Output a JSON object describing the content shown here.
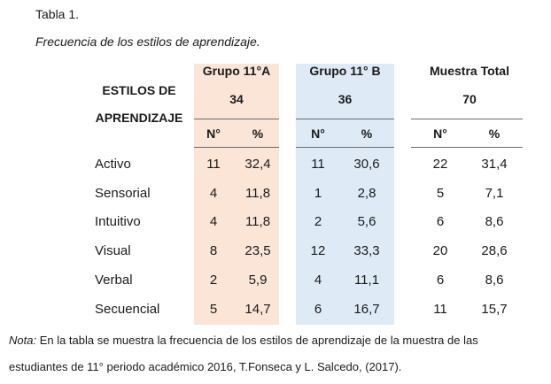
{
  "caption": {
    "title": "Tabla 1.",
    "subtitle": "Frecuencia de los estilos de aprendizaje."
  },
  "colors": {
    "group_a_band": "#fbe5d6",
    "group_b_band": "#deebf7"
  },
  "table": {
    "row_header_line1": "ESTILOS DE",
    "row_header_line2": "APRENDIZAJE",
    "groups": [
      {
        "name": "Grupo 11°A",
        "total": "34"
      },
      {
        "name": "Grupo 11° B",
        "total": "36"
      },
      {
        "name": "Muestra Total",
        "total": "70"
      }
    ],
    "sub_headers": [
      "N°",
      "%"
    ],
    "rows": [
      {
        "label": "Activo",
        "a_n": "11",
        "a_pct": "32,4",
        "b_n": "11",
        "b_pct": "30,6",
        "t_n": "22",
        "t_pct": "31,4"
      },
      {
        "label": "Sensorial",
        "a_n": "4",
        "a_pct": "11,8",
        "b_n": "1",
        "b_pct": "2,8",
        "t_n": "5",
        "t_pct": "7,1"
      },
      {
        "label": "Intuitivo",
        "a_n": "4",
        "a_pct": "11,8",
        "b_n": "2",
        "b_pct": "5,6",
        "t_n": "6",
        "t_pct": "8,6"
      },
      {
        "label": "Visual",
        "a_n": "8",
        "a_pct": "23,5",
        "b_n": "12",
        "b_pct": "33,3",
        "t_n": "20",
        "t_pct": "28,6"
      },
      {
        "label": "Verbal",
        "a_n": "2",
        "a_pct": "5,9",
        "b_n": "4",
        "b_pct": "11,1",
        "t_n": "6",
        "t_pct": "8,6"
      },
      {
        "label": "Secuencial",
        "a_n": "5",
        "a_pct": "14,7",
        "b_n": "6",
        "b_pct": "16,7",
        "t_n": "11",
        "t_pct": "15,7"
      }
    ]
  },
  "note": {
    "label": "Nota:",
    "line1": " En la tabla se muestra la frecuencia de los estilos de aprendizaje de la muestra de las",
    "line2": "estudiantes de 11° periodo académico 2016, T.Fonseca y L. Salcedo, (2017)."
  }
}
